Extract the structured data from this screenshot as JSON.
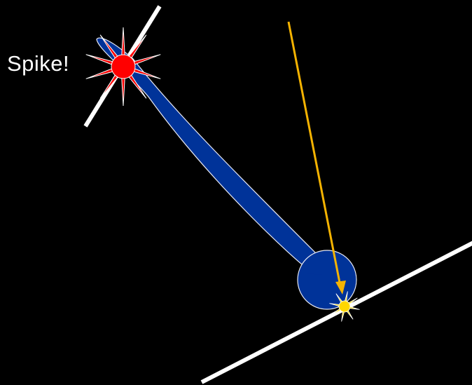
{
  "label": {
    "spike": "Spike!"
  },
  "colors": {
    "background": "#000000",
    "neuron_fill": "#003399",
    "neuron_outline": "#e8eaf4",
    "spike_burst": "#ff0000",
    "spike_burst_outline": "#ffffff",
    "arrow": "#f5b301",
    "target_burst": "#ffd700",
    "target_burst_outline": "#ffffff",
    "line": "#ffffff"
  },
  "icons": {
    "spike_marker": "red-starburst-icon",
    "target_marker": "yellow-starburst-icon",
    "arrow": "arrow-down-icon"
  }
}
